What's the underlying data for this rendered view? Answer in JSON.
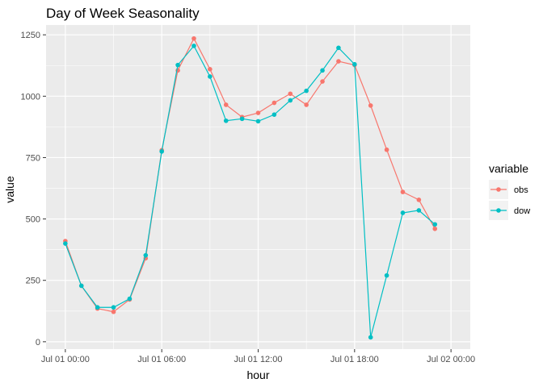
{
  "chart_data": {
    "type": "line",
    "title": "Day of Week Seasonality",
    "xlabel": "hour",
    "ylabel": "value",
    "x": [
      "00:00",
      "01:00",
      "02:00",
      "03:00",
      "04:00",
      "05:00",
      "06:00",
      "07:00",
      "08:00",
      "09:00",
      "10:00",
      "11:00",
      "12:00",
      "13:00",
      "14:00",
      "15:00",
      "16:00",
      "17:00",
      "18:00",
      "19:00",
      "20:00",
      "21:00",
      "22:00",
      "23:00"
    ],
    "x_ticks": {
      "values": [
        0,
        6,
        12,
        18,
        24
      ],
      "labels": [
        "Jul 01 00:00",
        "Jul 01 06:00",
        "Jul 01 12:00",
        "Jul 01 18:00",
        "Jul 02 00:00"
      ]
    },
    "xlim": [
      -1.2,
      25.2
    ],
    "y_ticks": [
      0,
      250,
      500,
      750,
      1000,
      1250
    ],
    "ylim": [
      -30,
      1290
    ],
    "legend": {
      "title": "variable",
      "position": "right"
    },
    "series": [
      {
        "name": "obs",
        "color": "#F8766D",
        "values": [
          410,
          228,
          135,
          122,
          172,
          340,
          780,
          1105,
          1235,
          1110,
          965,
          915,
          932,
          973,
          1010,
          965,
          1060,
          1142,
          1127,
          962,
          782,
          610,
          578,
          460
        ]
      },
      {
        "name": "dow",
        "color": "#00BFC4",
        "values": [
          400,
          228,
          140,
          140,
          175,
          352,
          775,
          1127,
          1205,
          1080,
          900,
          908,
          898,
          925,
          983,
          1022,
          1105,
          1197,
          1130,
          18,
          270,
          525,
          535,
          478
        ]
      }
    ],
    "grid": true,
    "panel_background": "#EBEBEB"
  }
}
